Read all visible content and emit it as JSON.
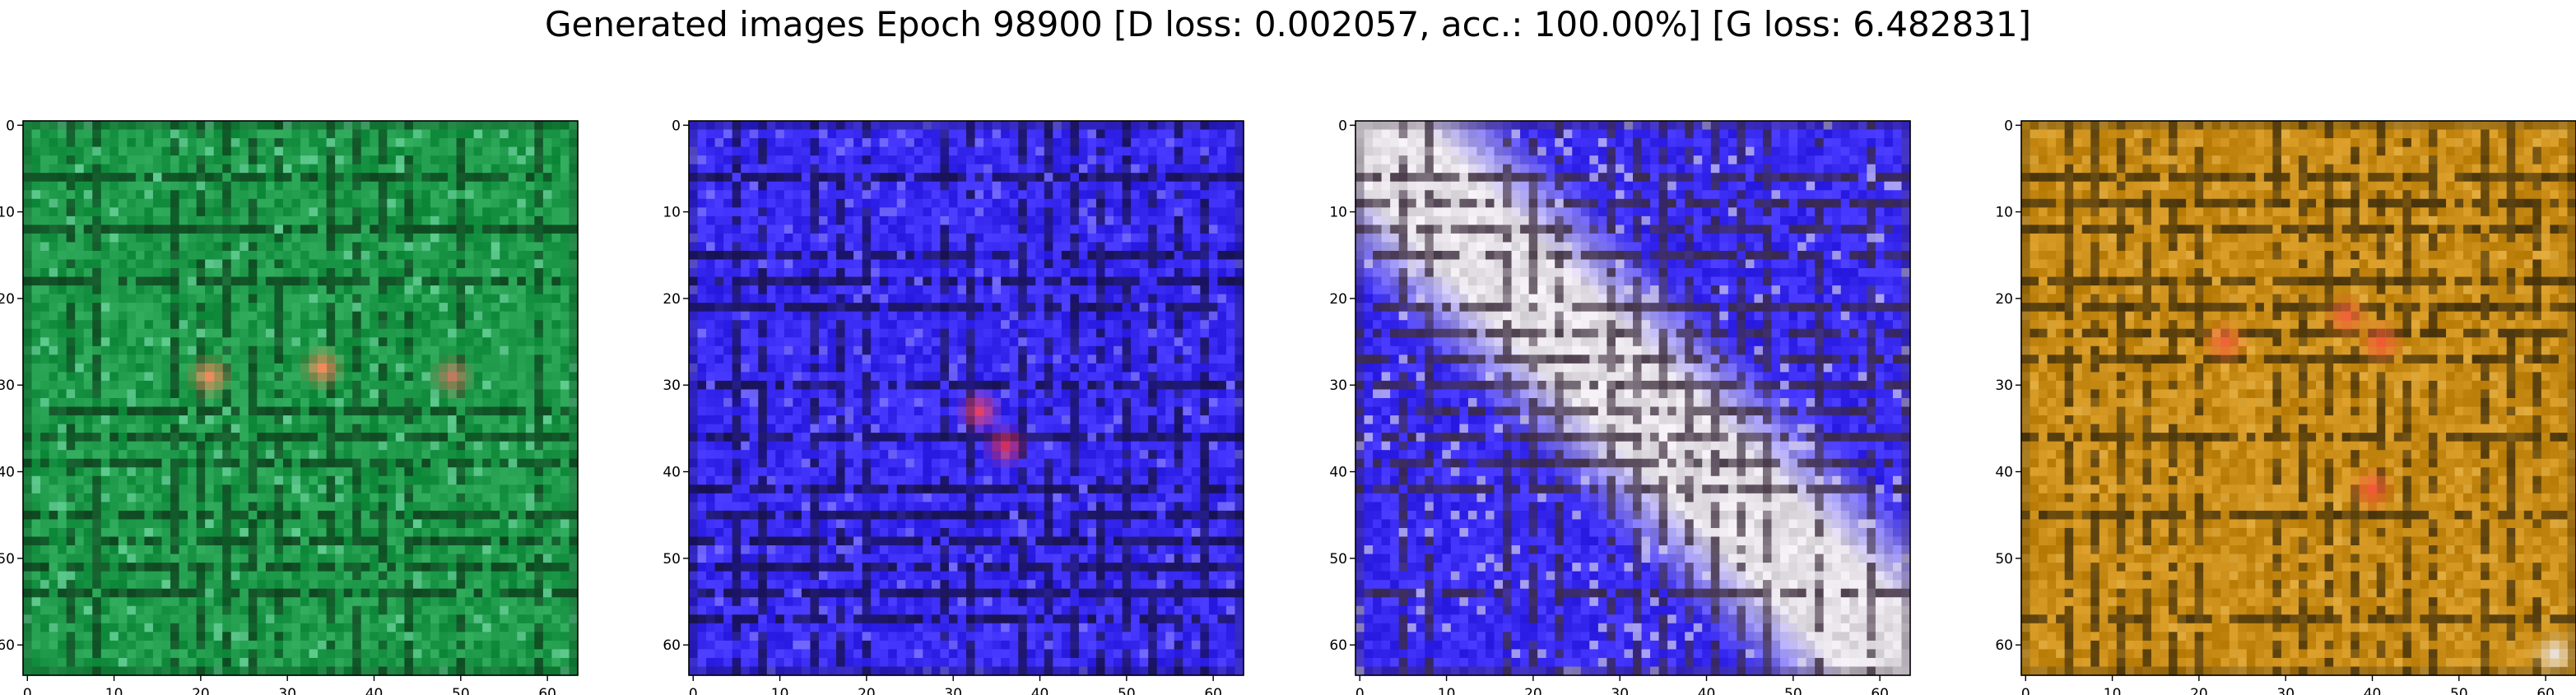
{
  "figure": {
    "title": "Generated images Epoch 98900 [D loss: 0.002057, acc.: 100.00%] [G loss: 6.482831]"
  },
  "chart_data": [
    {
      "type": "heatmap",
      "title": "",
      "xlabel": "",
      "ylabel": "",
      "xlim": [
        0,
        64
      ],
      "ylim": [
        64,
        0
      ],
      "xticks": [
        "0",
        "10",
        "20",
        "30",
        "40",
        "50",
        "60"
      ],
      "yticks": [
        "0",
        "10",
        "20",
        "30",
        "40",
        "50",
        "60"
      ],
      "grid": false,
      "base_color": "#1f9a4b",
      "line_color": "#0e3d1c",
      "highlight_color": "#7fe0b0",
      "spots": [
        {
          "x": 21,
          "y": 29,
          "color": "#f08a5d"
        },
        {
          "x": 34,
          "y": 28,
          "color": "#f08a5d"
        },
        {
          "x": 49,
          "y": 29,
          "color": "#c07a60"
        }
      ]
    },
    {
      "type": "heatmap",
      "title": "",
      "xlabel": "",
      "ylabel": "",
      "xlim": [
        0,
        64
      ],
      "ylim": [
        64,
        0
      ],
      "xticks": [
        "0",
        "10",
        "20",
        "30",
        "40",
        "50",
        "60"
      ],
      "yticks": [
        "0",
        "10",
        "20",
        "30",
        "40",
        "50",
        "60"
      ],
      "grid": false,
      "base_color": "#3a2cf2",
      "line_color": "#151040",
      "highlight_color": "#8e86ff",
      "spots": [
        {
          "x": 33,
          "y": 33,
          "color": "#e0406a"
        },
        {
          "x": 36,
          "y": 37,
          "color": "#d03060"
        }
      ]
    },
    {
      "type": "heatmap",
      "title": "",
      "xlabel": "",
      "ylabel": "",
      "xlim": [
        0,
        64
      ],
      "ylim": [
        64,
        0
      ],
      "xticks": [
        "0",
        "10",
        "20",
        "30",
        "40",
        "50",
        "60"
      ],
      "yticks": [
        "0",
        "10",
        "20",
        "30",
        "40",
        "50",
        "60"
      ],
      "grid": false,
      "base_color": "#3a2cf2",
      "line_color": "#3a2a3a",
      "highlight_color": "#e8e4ea",
      "band_color": "#e4e0e6",
      "band": {
        "from": [
          0,
          0
        ],
        "to": [
          64,
          64
        ],
        "width": 26
      },
      "spots": []
    },
    {
      "type": "heatmap",
      "title": "",
      "xlabel": "",
      "ylabel": "",
      "xlim": [
        0,
        64
      ],
      "ylim": [
        64,
        0
      ],
      "xticks": [
        "0",
        "10",
        "20",
        "30",
        "40",
        "50",
        "60"
      ],
      "yticks": [
        "0",
        "10",
        "20",
        "30",
        "40",
        "50",
        "60"
      ],
      "grid": false,
      "base_color": "#c98d18",
      "line_color": "#3a2a0a",
      "highlight_color": "#e8b44a",
      "spots": [
        {
          "x": 23,
          "y": 25,
          "color": "#f0643a"
        },
        {
          "x": 37,
          "y": 22,
          "color": "#f0643a"
        },
        {
          "x": 41,
          "y": 25,
          "color": "#f05a36"
        },
        {
          "x": 40,
          "y": 42,
          "color": "#f05a36"
        },
        {
          "x": 61,
          "y": 61,
          "color": "#e8e0d8"
        }
      ]
    }
  ]
}
